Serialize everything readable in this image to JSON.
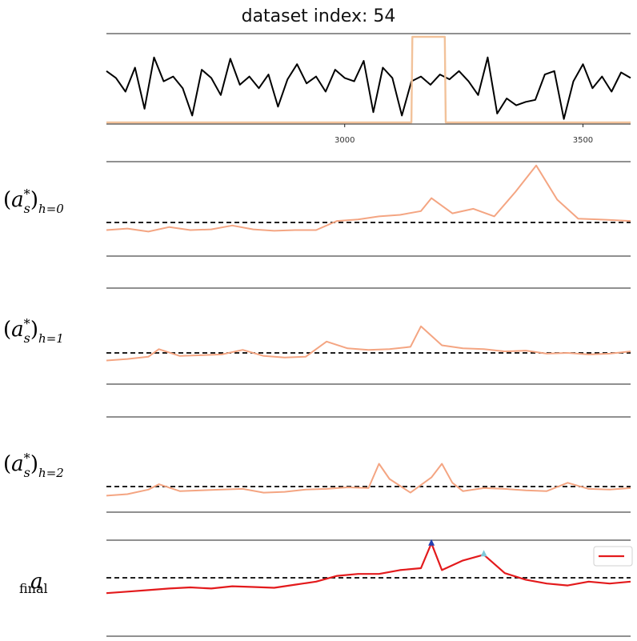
{
  "chart_data": [
    {
      "type": "line",
      "title": "dataset index: 54",
      "xlim": [
        2500,
        3600
      ],
      "x_ticks": [
        3000,
        3500
      ],
      "x_tick_labels": [
        "3000",
        "3500"
      ],
      "series": [
        {
          "color": "#000000",
          "x": [
            2500,
            2520,
            2540,
            2560,
            2580,
            2600,
            2620,
            2640,
            2660,
            2680,
            2700,
            2720,
            2740,
            2760,
            2780,
            2800,
            2820,
            2840,
            2860,
            2880,
            2900,
            2920,
            2940,
            2960,
            2980,
            3000,
            3020,
            3040,
            3060,
            3080,
            3100,
            3120,
            3140,
            3160,
            3180,
            3200,
            3220,
            3240,
            3260,
            3280,
            3300,
            3320,
            3340,
            3360,
            3380,
            3400,
            3420,
            3440,
            3460,
            3480,
            3500,
            3520,
            3540,
            3560,
            3580,
            3600
          ],
          "y": [
            0.7,
            0.6,
            0.4,
            0.75,
            0.15,
            0.9,
            0.55,
            0.62,
            0.45,
            0.05,
            0.72,
            0.6,
            0.35,
            0.88,
            0.5,
            0.62,
            0.45,
            0.65,
            0.18,
            0.58,
            0.8,
            0.52,
            0.62,
            0.4,
            0.72,
            0.6,
            0.55,
            0.85,
            0.1,
            0.75,
            0.6,
            0.05,
            0.55,
            0.62,
            0.5,
            0.65,
            0.58,
            0.7,
            0.55,
            0.35,
            0.9,
            0.08,
            0.3,
            0.2,
            0.25,
            0.28,
            0.65,
            0.7,
            0.0,
            0.55,
            0.8,
            0.45,
            0.62,
            0.4,
            0.68,
            0.6
          ]
        },
        {
          "color": "#f2c29a",
          "x": [
            2500,
            3140,
            3142,
            3210,
            3212,
            3600
          ],
          "y": [
            -0.05,
            -0.05,
            1.2,
            1.2,
            -0.05,
            -0.05
          ]
        }
      ]
    },
    {
      "type": "line",
      "row_label": "(a*_s)_{h=0}",
      "baseline": 0.0,
      "series": [
        {
          "color": "#f4a582",
          "x": [
            0,
            4,
            8,
            12,
            16,
            20,
            24,
            28,
            32,
            36,
            40,
            44,
            48,
            52,
            56,
            60,
            62,
            66,
            70,
            74,
            78,
            82,
            86,
            90,
            94,
            100
          ],
          "y": [
            -0.1,
            -0.08,
            -0.12,
            -0.06,
            -0.1,
            -0.09,
            -0.04,
            -0.09,
            -0.11,
            -0.1,
            -0.1,
            0.02,
            0.04,
            0.08,
            0.1,
            0.15,
            0.32,
            0.12,
            0.18,
            0.08,
            0.4,
            0.75,
            0.3,
            0.05,
            0.04,
            0.02
          ]
        }
      ]
    },
    {
      "type": "line",
      "row_label": "(a*_s)_{h=1}",
      "baseline": 0.0,
      "series": [
        {
          "color": "#f4a582",
          "x": [
            0,
            4,
            8,
            10,
            14,
            18,
            22,
            26,
            30,
            34,
            38,
            42,
            46,
            50,
            54,
            58,
            60,
            64,
            68,
            72,
            76,
            80,
            84,
            88,
            92,
            96,
            100
          ],
          "y": [
            -0.1,
            -0.08,
            -0.05,
            0.05,
            -0.04,
            -0.03,
            -0.02,
            0.04,
            -0.04,
            -0.06,
            -0.05,
            0.15,
            0.06,
            0.04,
            0.05,
            0.08,
            0.35,
            0.1,
            0.06,
            0.05,
            0.02,
            0.03,
            -0.01,
            0.0,
            -0.02,
            -0.01,
            0.02
          ]
        }
      ]
    },
    {
      "type": "line",
      "row_label": "(a*_s)_{h=2}",
      "baseline": 0.0,
      "series": [
        {
          "color": "#f4a582",
          "x": [
            0,
            4,
            8,
            10,
            14,
            18,
            22,
            26,
            30,
            34,
            38,
            42,
            46,
            50,
            52,
            54,
            58,
            62,
            64,
            66,
            68,
            72,
            76,
            80,
            84,
            88,
            92,
            96,
            100
          ],
          "y": [
            -0.12,
            -0.1,
            -0.04,
            0.03,
            -0.06,
            -0.05,
            -0.04,
            -0.03,
            -0.08,
            -0.07,
            -0.04,
            -0.03,
            -0.01,
            -0.02,
            0.3,
            0.1,
            -0.08,
            0.12,
            0.3,
            0.05,
            -0.06,
            -0.02,
            -0.03,
            -0.05,
            -0.06,
            0.05,
            -0.03,
            -0.04,
            -0.02
          ]
        }
      ]
    },
    {
      "type": "line",
      "row_label": "a_final",
      "baseline": 0.0,
      "legend": "top-right",
      "series": [
        {
          "color": "#e31a1c",
          "x": [
            0,
            4,
            8,
            12,
            16,
            20,
            24,
            28,
            32,
            36,
            40,
            44,
            48,
            52,
            56,
            60,
            62,
            64,
            68,
            72,
            76,
            80,
            84,
            88,
            92,
            96,
            100
          ],
          "y": [
            -0.4,
            -0.36,
            -0.32,
            -0.28,
            -0.25,
            -0.28,
            -0.22,
            -0.24,
            -0.26,
            -0.18,
            -0.1,
            0.05,
            0.1,
            0.1,
            0.2,
            0.25,
            0.9,
            0.2,
            0.45,
            0.6,
            0.12,
            -0.05,
            -0.15,
            -0.2,
            -0.1,
            -0.15,
            -0.1
          ]
        }
      ],
      "markers": [
        {
          "x": 62,
          "y": 0.9,
          "color": "#2541b2",
          "symbol": "triangle"
        },
        {
          "x": 72,
          "y": 0.62,
          "color": "#7ec8d8",
          "symbol": "triangle"
        }
      ]
    }
  ]
}
